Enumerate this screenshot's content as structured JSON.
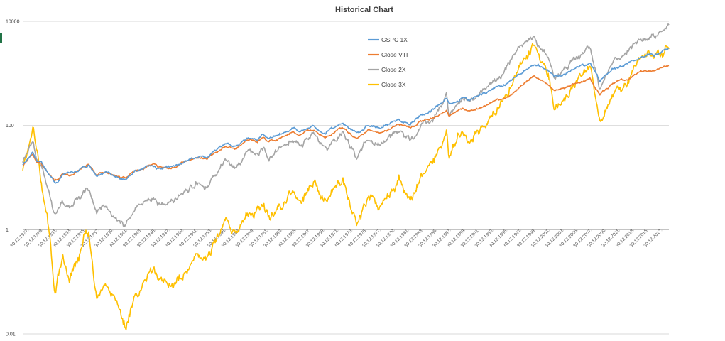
{
  "chart_data": {
    "type": "line",
    "title": "Historical Chart",
    "xlabel": "",
    "ylabel": "",
    "yscale": "log",
    "ylim": [
      0.01,
      10000
    ],
    "y_ticks": [
      {
        "value": 10000,
        "label": "10000"
      },
      {
        "value": 100,
        "label": "100"
      },
      {
        "value": 1,
        "label": "1"
      },
      {
        "value": 0.01,
        "label": "0.01"
      }
    ],
    "x_range": [
      1927.9,
      2018.9
    ],
    "x_tick_labels": [
      "30.12.1927",
      "30.12.1929",
      "30.12.1931",
      "30.12.1933",
      "30.12.1935",
      "30.12.1937",
      "30.12.1939",
      "30.12.1941",
      "30.12.1943",
      "30.12.1945",
      "30.12.1947",
      "30.12.1949",
      "30.12.1951",
      "30.12.1953",
      "30.12.1955",
      "30.12.1957",
      "30.12.1959",
      "30.12.1961",
      "30.12.1963",
      "30.12.1965",
      "30.12.1967",
      "30.12.1969",
      "30.12.1971",
      "30.12.1973",
      "30.12.1975",
      "30.12.1977",
      "30.12.1979",
      "30.12.1981",
      "30.12.1983",
      "30.12.1985",
      "30.12.1987",
      "30.12.1989",
      "30.12.1991",
      "30.12.1993",
      "30.12.1995",
      "30.12.1997",
      "30.12.1999",
      "30.12.2001",
      "30.12.2003",
      "30.12.2005",
      "30.12.2007",
      "30.12.2009",
      "30.12.2011",
      "30.12.2013",
      "30.12.2015",
      "30.12.2017"
    ],
    "gridlines": "horizontal",
    "legend_position": "top",
    "series": [
      {
        "name": "GSPC 1X",
        "color": "#5B9BD5",
        "points": [
          [
            1927.9,
            18
          ],
          [
            1928.5,
            22
          ],
          [
            1929.3,
            30
          ],
          [
            1929.8,
            22
          ],
          [
            1930.5,
            20
          ],
          [
            1931.5,
            12
          ],
          [
            1932.4,
            8
          ],
          [
            1932.9,
            9
          ],
          [
            1933.5,
            12
          ],
          [
            1934.5,
            11
          ],
          [
            1936.5,
            17
          ],
          [
            1937.2,
            18
          ],
          [
            1938.3,
            11
          ],
          [
            1939.5,
            13
          ],
          [
            1941.5,
            10
          ],
          [
            1942.3,
            9
          ],
          [
            1943.5,
            13
          ],
          [
            1945.5,
            16
          ],
          [
            1946.4,
            17
          ],
          [
            1946.9,
            15
          ],
          [
            1949.3,
            16
          ],
          [
            1950.5,
            20
          ],
          [
            1952.5,
            25
          ],
          [
            1953.8,
            24
          ],
          [
            1956.5,
            45
          ],
          [
            1957.9,
            40
          ],
          [
            1959.5,
            58
          ],
          [
            1960.9,
            55
          ],
          [
            1961.9,
            70
          ],
          [
            1962.5,
            55
          ],
          [
            1965.9,
            90
          ],
          [
            1966.9,
            78
          ],
          [
            1968.9,
            105
          ],
          [
            1970.5,
            72
          ],
          [
            1972.9,
            118
          ],
          [
            1974.9,
            68
          ],
          [
            1976.5,
            105
          ],
          [
            1978.2,
            90
          ],
          [
            1980.9,
            135
          ],
          [
            1982.5,
            110
          ],
          [
            1983.9,
            165
          ],
          [
            1985.9,
            210
          ],
          [
            1987.6,
            330
          ],
          [
            1987.9,
            245
          ],
          [
            1989.9,
            350
          ],
          [
            1990.8,
            300
          ],
          [
            1993.9,
            470
          ],
          [
            1995.9,
            620
          ],
          [
            1997.9,
            1000
          ],
          [
            1999.9,
            1500
          ],
          [
            2001.9,
            1150
          ],
          [
            2002.8,
            800
          ],
          [
            2005.9,
            1300
          ],
          [
            2007.8,
            1550
          ],
          [
            2009.2,
            700
          ],
          [
            2010.9,
            1250
          ],
          [
            2012.9,
            1450
          ],
          [
            2014.9,
            2050
          ],
          [
            2016.9,
            2250
          ],
          [
            2018.9,
            2950
          ]
        ]
      },
      {
        "name": "Close VTI",
        "color": "#ED7D31",
        "points": [
          [
            1927.9,
            17
          ],
          [
            1928.5,
            21
          ],
          [
            1929.3,
            28
          ],
          [
            1929.8,
            21
          ],
          [
            1930.5,
            19
          ],
          [
            1931.5,
            12
          ],
          [
            1932.4,
            8.5
          ],
          [
            1932.9,
            9.5
          ],
          [
            1933.5,
            12
          ],
          [
            1934.5,
            11
          ],
          [
            1936.5,
            17
          ],
          [
            1937.2,
            18
          ],
          [
            1938.3,
            11.5
          ],
          [
            1939.5,
            13
          ],
          [
            1941.5,
            10.5
          ],
          [
            1942.3,
            9.5
          ],
          [
            1943.5,
            13
          ],
          [
            1945.5,
            16
          ],
          [
            1946.4,
            17
          ],
          [
            1946.9,
            15
          ],
          [
            1949.3,
            16
          ],
          [
            1950.5,
            20
          ],
          [
            1952.5,
            24
          ],
          [
            1953.8,
            23
          ],
          [
            1956.5,
            42
          ],
          [
            1957.9,
            37
          ],
          [
            1959.5,
            52
          ],
          [
            1960.9,
            48
          ],
          [
            1961.9,
            60
          ],
          [
            1962.5,
            48
          ],
          [
            1965.9,
            72
          ],
          [
            1966.9,
            64
          ],
          [
            1968.9,
            82
          ],
          [
            1970.5,
            58
          ],
          [
            1972.9,
            90
          ],
          [
            1974.9,
            55
          ],
          [
            1976.5,
            82
          ],
          [
            1978.2,
            72
          ],
          [
            1980.9,
            105
          ],
          [
            1982.5,
            88
          ],
          [
            1983.9,
            120
          ],
          [
            1985.9,
            145
          ],
          [
            1987.6,
            200
          ],
          [
            1987.9,
            150
          ],
          [
            1989.9,
            210
          ],
          [
            1990.8,
            185
          ],
          [
            1993.9,
            260
          ],
          [
            1995.9,
            330
          ],
          [
            1997.9,
            520
          ],
          [
            1999.9,
            900
          ],
          [
            2001.9,
            620
          ],
          [
            2002.8,
            450
          ],
          [
            2005.9,
            650
          ],
          [
            2007.8,
            780
          ],
          [
            2009.2,
            380
          ],
          [
            2010.9,
            640
          ],
          [
            2012.9,
            740
          ],
          [
            2014.9,
            1000
          ],
          [
            2016.9,
            1150
          ],
          [
            2018.9,
            1500
          ]
        ]
      },
      {
        "name": "Close 2X",
        "color": "#A5A5A5",
        "points": [
          [
            1927.9,
            20
          ],
          [
            1928.5,
            28
          ],
          [
            1929.3,
            45
          ],
          [
            1929.8,
            25
          ],
          [
            1930.5,
            18
          ],
          [
            1931.5,
            6
          ],
          [
            1932.4,
            1.8
          ],
          [
            1932.9,
            2.5
          ],
          [
            1933.5,
            4
          ],
          [
            1934.5,
            3
          ],
          [
            1936.5,
            5.5
          ],
          [
            1937.2,
            6
          ],
          [
            1938.3,
            2.3
          ],
          [
            1939.5,
            3
          ],
          [
            1941.5,
            1.5
          ],
          [
            1942.3,
            1.1
          ],
          [
            1943.5,
            2.2
          ],
          [
            1945.5,
            3.8
          ],
          [
            1946.4,
            4.2
          ],
          [
            1946.9,
            3
          ],
          [
            1949.3,
            3.3
          ],
          [
            1950.5,
            5
          ],
          [
            1952.5,
            8
          ],
          [
            1953.8,
            7
          ],
          [
            1956.5,
            21
          ],
          [
            1957.9,
            15
          ],
          [
            1959.5,
            30
          ],
          [
            1960.9,
            26
          ],
          [
            1961.9,
            40
          ],
          [
            1962.5,
            25
          ],
          [
            1965.9,
            55
          ],
          [
            1966.9,
            40
          ],
          [
            1968.9,
            70
          ],
          [
            1970.5,
            32
          ],
          [
            1972.9,
            80
          ],
          [
            1974.9,
            23
          ],
          [
            1976.5,
            55
          ],
          [
            1978.2,
            40
          ],
          [
            1980.9,
            75
          ],
          [
            1982.5,
            50
          ],
          [
            1983.9,
            95
          ],
          [
            1985.9,
            150
          ],
          [
            1987.6,
            400
          ],
          [
            1987.9,
            160
          ],
          [
            1989.9,
            350
          ],
          [
            1990.8,
            280
          ],
          [
            1993.9,
            600
          ],
          [
            1995.9,
            1100
          ],
          [
            1997.9,
            3000
          ],
          [
            1999.9,
            5000
          ],
          [
            2001.9,
            2000
          ],
          [
            2002.8,
            800
          ],
          [
            2005.9,
            2200
          ],
          [
            2007.8,
            3000
          ],
          [
            2009.2,
            500
          ],
          [
            2010.9,
            1600
          ],
          [
            2012.9,
            2200
          ],
          [
            2014.9,
            4800
          ],
          [
            2016.9,
            5500
          ],
          [
            2018.9,
            8500
          ]
        ]
      },
      {
        "name": "Close 3X",
        "color": "#FFC000",
        "points": [
          [
            1927.9,
            15
          ],
          [
            1928.5,
            30
          ],
          [
            1929.3,
            85
          ],
          [
            1929.8,
            40
          ],
          [
            1930.5,
            8
          ],
          [
            1931.5,
            1.2
          ],
          [
            1932.4,
            0.05
          ],
          [
            1932.9,
            0.15
          ],
          [
            1933.5,
            0.3
          ],
          [
            1934.5,
            0.12
          ],
          [
            1936.5,
            0.6
          ],
          [
            1937.2,
            0.8
          ],
          [
            1938.3,
            0.05
          ],
          [
            1939.5,
            0.1
          ],
          [
            1941.5,
            0.025
          ],
          [
            1942.3,
            0.012
          ],
          [
            1943.5,
            0.05
          ],
          [
            1945.5,
            0.13
          ],
          [
            1946.4,
            0.18
          ],
          [
            1946.9,
            0.08
          ],
          [
            1949.3,
            0.08
          ],
          [
            1950.5,
            0.15
          ],
          [
            1952.5,
            0.35
          ],
          [
            1953.8,
            0.3
          ],
          [
            1956.5,
            1.2
          ],
          [
            1957.9,
            0.8
          ],
          [
            1959.5,
            2.2
          ],
          [
            1960.9,
            2
          ],
          [
            1961.9,
            3.5
          ],
          [
            1962.5,
            1.8
          ],
          [
            1965.9,
            6
          ],
          [
            1966.9,
            4
          ],
          [
            1968.9,
            9
          ],
          [
            1970.5,
            3
          ],
          [
            1972.9,
            10
          ],
          [
            1974.9,
            1.3
          ],
          [
            1976.5,
            4.5
          ],
          [
            1978.2,
            2.8
          ],
          [
            1980.9,
            8
          ],
          [
            1982.5,
            3.5
          ],
          [
            1983.9,
            10
          ],
          [
            1985.9,
            20
          ],
          [
            1987.6,
            85
          ],
          [
            1987.9,
            25
          ],
          [
            1989.9,
            70
          ],
          [
            1990.8,
            50
          ],
          [
            1993.9,
            140
          ],
          [
            1995.9,
            350
          ],
          [
            1997.9,
            1500
          ],
          [
            1999.9,
            3500
          ],
          [
            2001.9,
            900
          ],
          [
            2002.8,
            250
          ],
          [
            2005.9,
            700
          ],
          [
            2007.8,
            1200
          ],
          [
            2009.2,
            80
          ],
          [
            2010.9,
            400
          ],
          [
            2012.9,
            550
          ],
          [
            2014.9,
            1700
          ],
          [
            2016.9,
            2000
          ],
          [
            2018.9,
            4000
          ]
        ]
      }
    ]
  }
}
